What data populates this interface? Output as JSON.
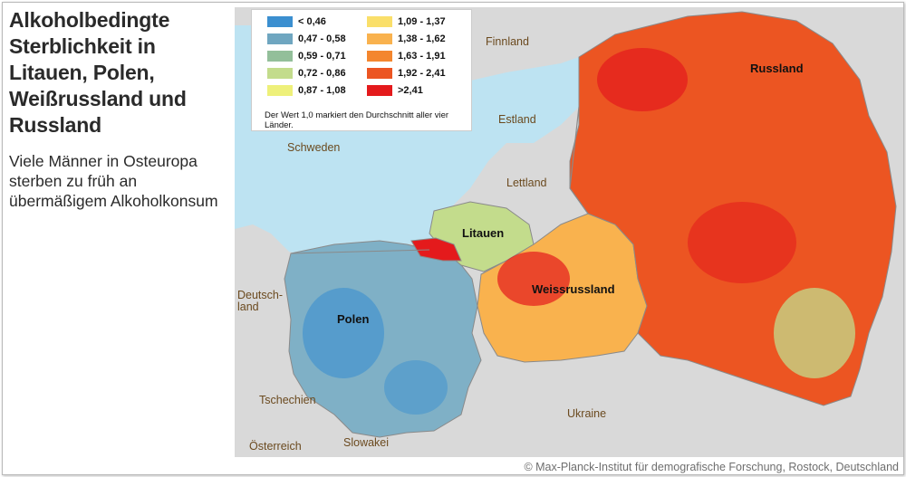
{
  "title": "Alkoholbedingte Sterblichkeit in Litauen, Polen, Weißrussland und Russland",
  "subtitle": "Viele Männer in Osteuropa sterben zu früh an übermäßigem Alkoholkonsum",
  "legend": {
    "items": [
      {
        "label": "< 0,46",
        "color": "#3b8fd0"
      },
      {
        "label": "0,47 - 0,58",
        "color": "#6fa6c0"
      },
      {
        "label": "0,59 - 0,71",
        "color": "#93bf9a"
      },
      {
        "label": "0,72 - 0,86",
        "color": "#c3dc8c"
      },
      {
        "label": "0,87 - 1,08",
        "color": "#eef07a"
      },
      {
        "label": "1,09 - 1,37",
        "color": "#fadf6a"
      },
      {
        "label": "1,38 - 1,62",
        "color": "#f9b24e"
      },
      {
        "label": "1,63 - 1,91",
        "color": "#f4862e"
      },
      {
        "label": "1,92 - 2,41",
        "color": "#ec5522"
      },
      {
        "label": ">2,41",
        "color": "#e41a1c"
      }
    ],
    "note": "Der Wert 1,0 markiert den Durchschnitt aller vier Länder."
  },
  "labels": {
    "finnland": "Finnland",
    "russland": "Russland",
    "estland": "Estland",
    "schweden": "Schweden",
    "lettland": "Lettland",
    "litauen": "Litauen",
    "weissrussland": "Weissrussland",
    "deutschland": "Deutsch-\nland",
    "polen": "Polen",
    "tschechien": "Tschechien",
    "ukraine": "Ukraine",
    "oesterreich": "Österreich",
    "slowakei": "Slowakei"
  },
  "copyright": "© Max-Planck-Institut für demografische Forschung, Rostock, Deutschland",
  "colors": {
    "sea": "#bde3f2",
    "land_other": "#d9d9d9",
    "border": "#8a8a8a"
  }
}
